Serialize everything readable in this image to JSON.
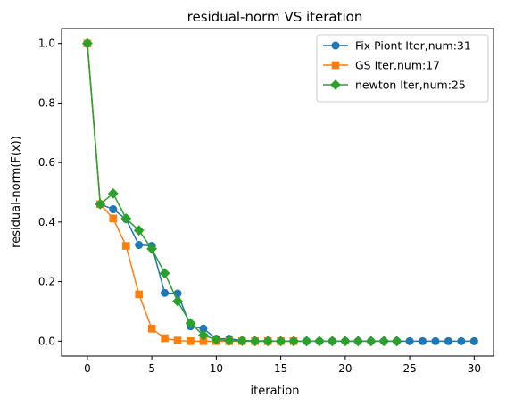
{
  "chart_data": {
    "type": "line",
    "title": "residual-norm VS iteration",
    "xlabel": "iteration",
    "ylabel": "residual-norm(F(x))",
    "xlim": [
      -2,
      31.5
    ],
    "ylim": [
      -0.05,
      1.05
    ],
    "xticks": [
      0,
      5,
      10,
      15,
      20,
      25,
      30
    ],
    "yticks": [
      0.0,
      0.2,
      0.4,
      0.6,
      0.8,
      1.0
    ],
    "xtick_labels": [
      "0",
      "5",
      "10",
      "15",
      "20",
      "25",
      "30"
    ],
    "ytick_labels": [
      "0.0",
      "0.2",
      "0.4",
      "0.6",
      "0.8",
      "1.0"
    ],
    "grid": false,
    "legend_position": "top-right",
    "series": [
      {
        "name": "Fix Piont Iter,num:31",
        "color": "#1f77b4",
        "marker": "circle",
        "x": [
          0,
          1,
          2,
          3,
          4,
          5,
          6,
          7,
          8,
          9,
          10,
          11,
          12,
          13,
          14,
          15,
          16,
          17,
          18,
          19,
          20,
          21,
          22,
          23,
          24,
          25,
          26,
          27,
          28,
          29,
          30
        ],
        "values": [
          1.0,
          0.46,
          0.443,
          0.41,
          0.323,
          0.32,
          0.162,
          0.16,
          0.05,
          0.042,
          0.008,
          0.008,
          0.002,
          0.001,
          0.001,
          0.0,
          0.0,
          0.0,
          0.0,
          0.0,
          0.0,
          0.0,
          0.0,
          0.0,
          0.0,
          0.0,
          0.0,
          0.0,
          0.0,
          0.0,
          0.0
        ]
      },
      {
        "name": "GS Iter,num:17",
        "color": "#ff7f0e",
        "marker": "square",
        "x": [
          0,
          1,
          2,
          3,
          4,
          5,
          6,
          7,
          8,
          9,
          10,
          11,
          12,
          13,
          14,
          15,
          16
        ],
        "values": [
          1.0,
          0.46,
          0.412,
          0.32,
          0.157,
          0.042,
          0.01,
          0.002,
          0.0,
          0.0,
          0.0,
          0.0,
          0.0,
          0.0,
          0.0,
          0.0,
          0.0
        ]
      },
      {
        "name": "newton Iter,num:25",
        "color": "#2ca02c",
        "marker": "diamond",
        "x": [
          0,
          1,
          2,
          3,
          4,
          5,
          6,
          7,
          8,
          9,
          10,
          11,
          12,
          13,
          14,
          15,
          16,
          17,
          18,
          19,
          20,
          21,
          22,
          23,
          24
        ],
        "values": [
          1.0,
          0.46,
          0.496,
          0.412,
          0.372,
          0.31,
          0.228,
          0.134,
          0.06,
          0.02,
          0.005,
          0.002,
          0.001,
          0.0,
          0.0,
          0.0,
          0.0,
          0.0,
          0.0,
          0.0,
          0.0,
          0.0,
          0.0,
          0.0,
          0.0
        ]
      }
    ]
  }
}
